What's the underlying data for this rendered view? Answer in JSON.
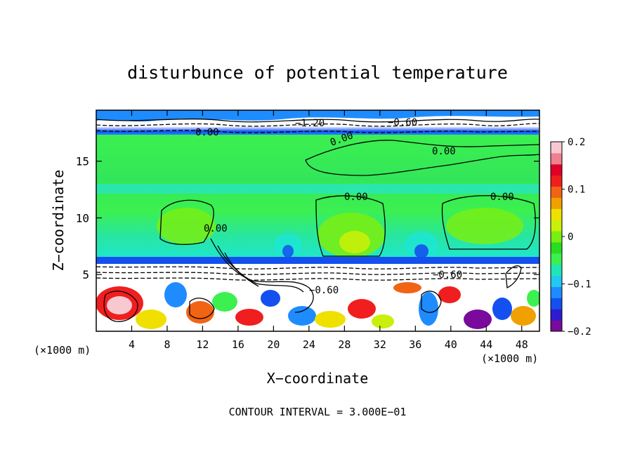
{
  "chart_data": {
    "type": "heatmap",
    "title": "disturbunce of potential temperature",
    "xlabel": "X−coordinate",
    "ylabel": "Z−coordinate",
    "x_unit_left": "(×1000 m)",
    "x_unit_right": "(×1000 m)",
    "xlim": [
      0,
      50
    ],
    "ylim": [
      0,
      19.5
    ],
    "x_ticks": [
      4,
      8,
      12,
      16,
      20,
      24,
      28,
      32,
      36,
      40,
      44,
      48
    ],
    "y_ticks": [
      5,
      10,
      15
    ],
    "colorbar": {
      "range": [
        -0.2,
        0.2
      ],
      "ticks": [
        "0.2",
        "0.1",
        "0",
        "−0.1",
        "−0.2"
      ],
      "colors": [
        "#7a0a9c",
        "#2e1bd0",
        "#1450f0",
        "#1e8cff",
        "#22c8f0",
        "#1ee6b4",
        "#3cf050",
        "#28dc1e",
        "#78ee14",
        "#c8f00a",
        "#f0e000",
        "#f0a000",
        "#f06414",
        "#f01e1e",
        "#e00028",
        "#f08090",
        "#f8c8d0"
      ]
    },
    "contour_labels": [
      "0.00",
      "0.00",
      "0.00",
      "0.00",
      "0.00",
      "0.00",
      "−1.20",
      "−0.60",
      "−0.60",
      "−0.60"
    ],
    "contour_interval_text": "CONTOUR INTERVAL = 3.000E−01"
  }
}
